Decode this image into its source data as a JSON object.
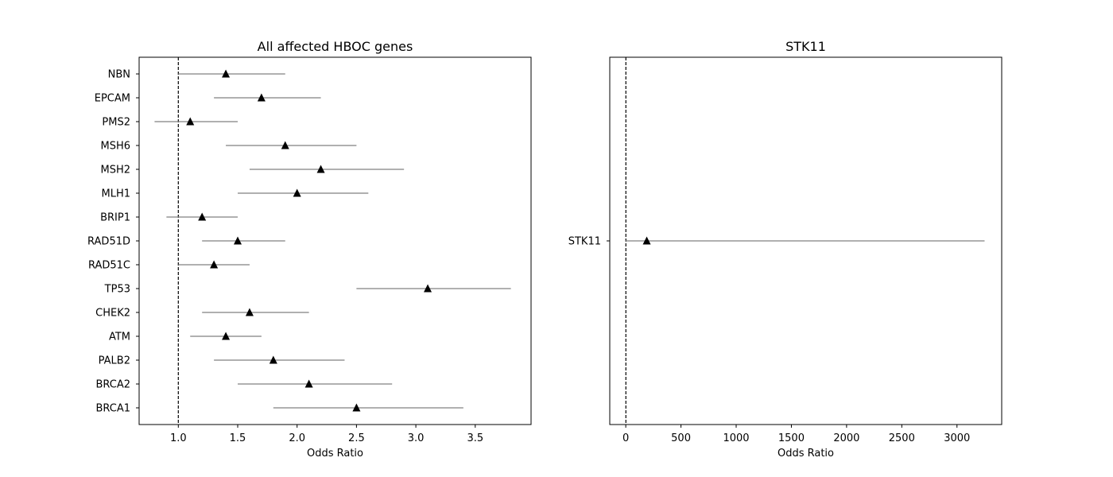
{
  "chart_data": [
    {
      "type": "forest",
      "title": "All affected HBOC genes",
      "xlabel": "Odds Ratio",
      "ylabel": "",
      "xlim": [
        0.67,
        3.97
      ],
      "xticks": [
        1.0,
        1.5,
        2.0,
        2.5,
        3.0,
        3.5
      ],
      "xtick_labels": [
        "1.0",
        "1.5",
        "2.0",
        "2.5",
        "3.0",
        "3.5"
      ],
      "reference_line": 1,
      "grid": false,
      "marker": "triangle",
      "colors": {
        "marker": "#000000",
        "ci": "#808080",
        "reference": "#000000"
      },
      "categories": [
        "BRCA1",
        "BRCA2",
        "PALB2",
        "ATM",
        "CHEK2",
        "TP53",
        "RAD51C",
        "RAD51D",
        "BRIP1",
        "MLH1",
        "MSH2",
        "MSH6",
        "PMS2",
        "EPCAM",
        "NBN"
      ],
      "values": [
        2.5,
        2.1,
        1.8,
        1.4,
        1.6,
        3.1,
        1.3,
        1.5,
        1.2,
        2.0,
        2.2,
        1.9,
        1.1,
        1.7,
        1.4
      ],
      "ci_lower": [
        1.8,
        1.5,
        1.3,
        1.1,
        1.2,
        2.5,
        1.0,
        1.2,
        0.9,
        1.5,
        1.6,
        1.4,
        0.8,
        1.3,
        1.0
      ],
      "ci_upper": [
        3.4,
        2.8,
        2.4,
        1.7,
        2.1,
        3.8,
        1.6,
        1.9,
        1.5,
        2.6,
        2.9,
        2.5,
        1.5,
        2.2,
        1.9
      ]
    },
    {
      "type": "forest",
      "title": "STK11",
      "xlabel": "Odds Ratio",
      "ylabel": "",
      "xlim": [
        -145,
        3405
      ],
      "xticks": [
        0,
        500,
        1000,
        1500,
        2000,
        2500,
        3000
      ],
      "xtick_labels": [
        "0",
        "500",
        "1000",
        "1500",
        "2000",
        "2500",
        "3000"
      ],
      "reference_line": 1,
      "grid": false,
      "marker": "triangle",
      "colors": {
        "marker": "#000000",
        "ci": "#808080",
        "reference": "#000000"
      },
      "categories": [
        "STK11"
      ],
      "values": [
        190
      ],
      "ci_lower": [
        0
      ],
      "ci_upper": [
        3250
      ]
    }
  ]
}
